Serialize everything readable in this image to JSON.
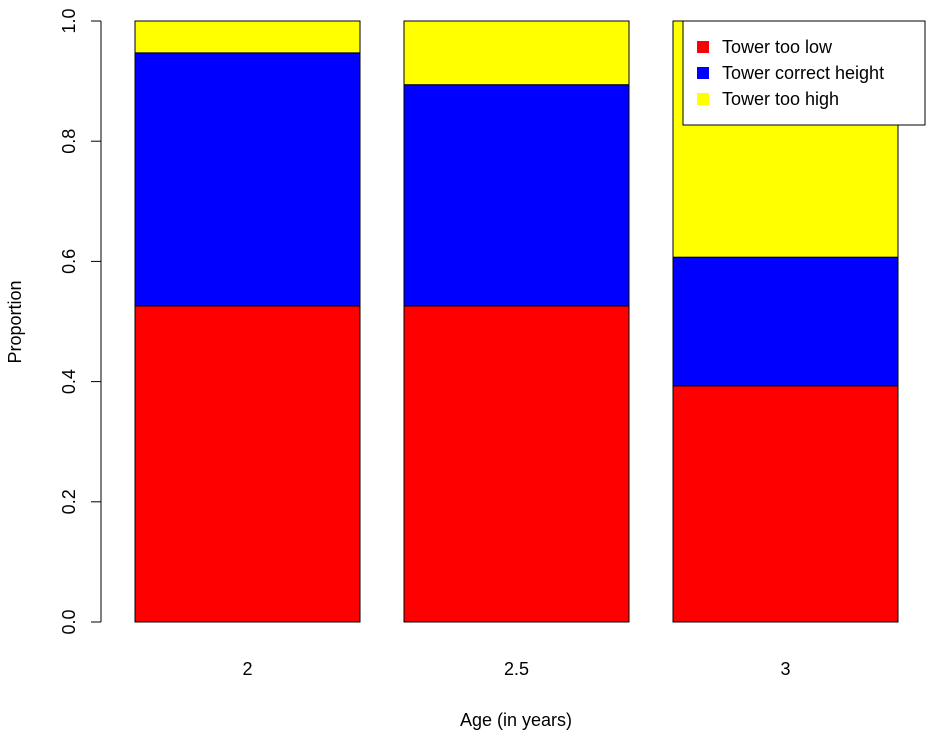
{
  "chart_data": {
    "type": "bar",
    "stacked": true,
    "categories": [
      "2",
      "2.5",
      "3"
    ],
    "series": [
      {
        "name": "Tower too low",
        "color": "#ff0000",
        "values": [
          0.526,
          0.526,
          0.393
        ]
      },
      {
        "name": "Tower correct height",
        "color": "#0000ff",
        "values": [
          0.421,
          0.368,
          0.214
        ]
      },
      {
        "name": "Tower too high",
        "color": "#ffff00",
        "values": [
          0.053,
          0.106,
          0.393
        ]
      }
    ],
    "xlabel": "Age (in years)",
    "ylabel": "Proportion",
    "ylim": [
      0,
      1
    ],
    "yticks": [
      "0.0",
      "0.2",
      "0.4",
      "0.6",
      "0.8",
      "1.0"
    ],
    "grid": false,
    "legend_position": "top-right"
  }
}
